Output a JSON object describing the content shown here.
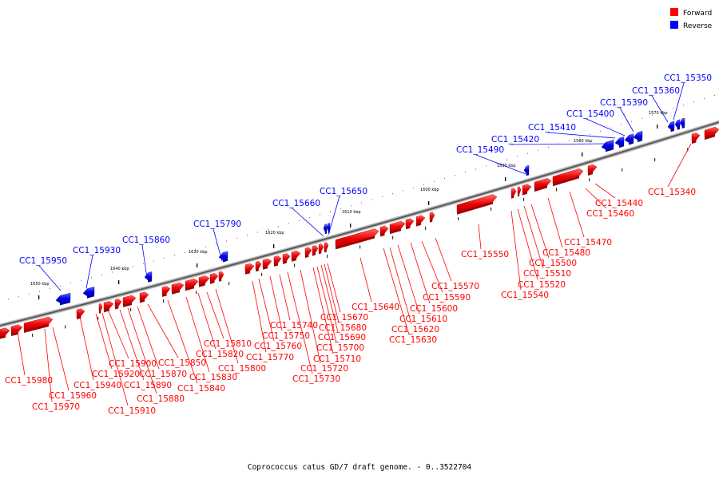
{
  "legend": {
    "forward_label": "Forward",
    "reverse_label": "Reverse",
    "forward_color": "#ff0000",
    "reverse_color": "#0000ff"
  },
  "caption": "Coprococcus catus GD/7 draft genome. - 0..3522704",
  "tick_labels": [
    "1570 kbp",
    "1580 kbp",
    "1590 kbp",
    "1600 kbp",
    "1610 kbp",
    "1620 kbp",
    "1630 kbp",
    "1640 kbp",
    "1650 kbp"
  ],
  "reverse_genes": [
    "CC1_15350",
    "CC1_15360",
    "CC1_15390",
    "CC1_15400",
    "CC1_15410",
    "CC1_15420",
    "CC1_15490",
    "CC1_15650",
    "CC1_15660",
    "CC1_15790",
    "CC1_15860",
    "CC1_15930",
    "CC1_15950"
  ],
  "forward_genes": [
    "CC1_15340",
    "CC1_15440",
    "CC1_15460",
    "CC1_15470",
    "CC1_15480",
    "CC1_15500",
    "CC1_15510",
    "CC1_15520",
    "CC1_15540",
    "CC1_15550",
    "CC1_15570",
    "CC1_15590",
    "CC1_15600",
    "CC1_15610",
    "CC1_15620",
    "CC1_15630",
    "CC1_15640",
    "CC1_15670",
    "CC1_15680",
    "CC1_15690",
    "CC1_15700",
    "CC1_15710",
    "CC1_15720",
    "CC1_15730",
    "CC1_15740",
    "CC1_15750",
    "CC1_15760",
    "CC1_15770",
    "CC1_15800",
    "CC1_15810",
    "CC1_15820",
    "CC1_15830",
    "CC1_15840",
    "CC1_15850",
    "CC1_15870",
    "CC1_15880",
    "CC1_15890",
    "CC1_15900",
    "CC1_15910",
    "CC1_15920",
    "CC1_15940",
    "CC1_15960",
    "CC1_15970",
    "CC1_15980"
  ]
}
